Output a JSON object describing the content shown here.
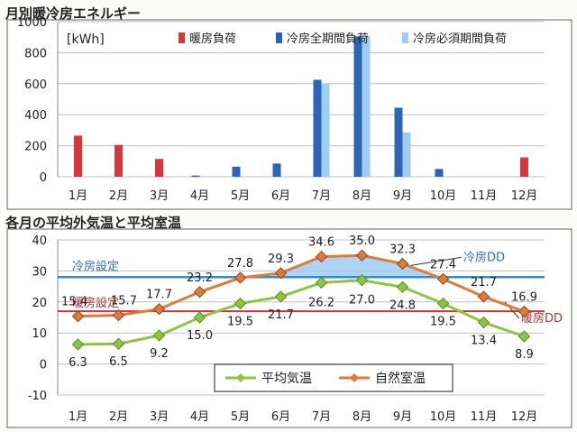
{
  "chart_data": [
    {
      "type": "bar",
      "title": "月別暖冷房エネルギー",
      "unit": "[kWh]",
      "categories": [
        "1月",
        "2月",
        "3月",
        "4月",
        "5月",
        "6月",
        "7月",
        "8月",
        "9月",
        "10月",
        "11月",
        "12月"
      ],
      "ylim": [
        0,
        1000
      ],
      "yticks": [
        0,
        200,
        400,
        600,
        800,
        1000
      ],
      "grid": true,
      "legend_position": "top-right",
      "series": [
        {
          "name": "暖房負荷",
          "color": "#d9353c",
          "values": [
            265,
            205,
            115,
            0,
            0,
            0,
            0,
            0,
            0,
            0,
            0,
            125
          ]
        },
        {
          "name": "冷房全期間負荷",
          "color": "#2d63b8",
          "values": [
            0,
            0,
            0,
            8,
            65,
            85,
            625,
            905,
            445,
            50,
            0,
            0
          ]
        },
        {
          "name": "冷房必須期間負荷",
          "color": "#9fcdf2",
          "values": [
            0,
            0,
            0,
            0,
            0,
            0,
            600,
            905,
            285,
            0,
            0,
            0
          ]
        }
      ]
    },
    {
      "type": "line",
      "title": "各月の平均外気温と平均室温",
      "categories": [
        "1月",
        "2月",
        "3月",
        "4月",
        "5月",
        "6月",
        "7月",
        "8月",
        "9月",
        "10月",
        "11月",
        "12月"
      ],
      "ylim": [
        -10,
        40
      ],
      "yticks": [
        -10,
        0,
        10,
        20,
        30,
        40
      ],
      "grid": true,
      "legend_position": "bottom-center",
      "series": [
        {
          "name": "平均気温",
          "color": "#8cc63f",
          "values": [
            6.3,
            6.5,
            9.2,
            15.0,
            19.5,
            21.7,
            26.2,
            27.0,
            24.8,
            19.5,
            13.4,
            8.9
          ],
          "labels": [
            "6.3",
            "6.5",
            "9.2",
            "15.0",
            "19.5",
            "21.7",
            "26.2",
            "27.0",
            "24.8",
            "19.5",
            "13.4",
            "8.9"
          ]
        },
        {
          "name": "自然室温",
          "color": "#e07a3a",
          "values": [
            15.4,
            15.7,
            17.7,
            23.2,
            27.8,
            29.3,
            34.6,
            35.0,
            32.3,
            27.4,
            21.7,
            16.9
          ],
          "labels": [
            "15.4",
            "15.7",
            "17.7",
            "23.2",
            "27.8",
            "29.3",
            "34.6",
            "35.0",
            "32.3",
            "27.4",
            "21.7",
            "16.9"
          ]
        }
      ],
      "reference_lines": [
        {
          "name": "冷房設定",
          "value": 28,
          "color": "#2f8fc9",
          "dd_label": "冷房DD"
        },
        {
          "name": "暖房設定",
          "value": 17,
          "color": "#c8353c",
          "dd_label": "暖房DD"
        }
      ]
    }
  ]
}
